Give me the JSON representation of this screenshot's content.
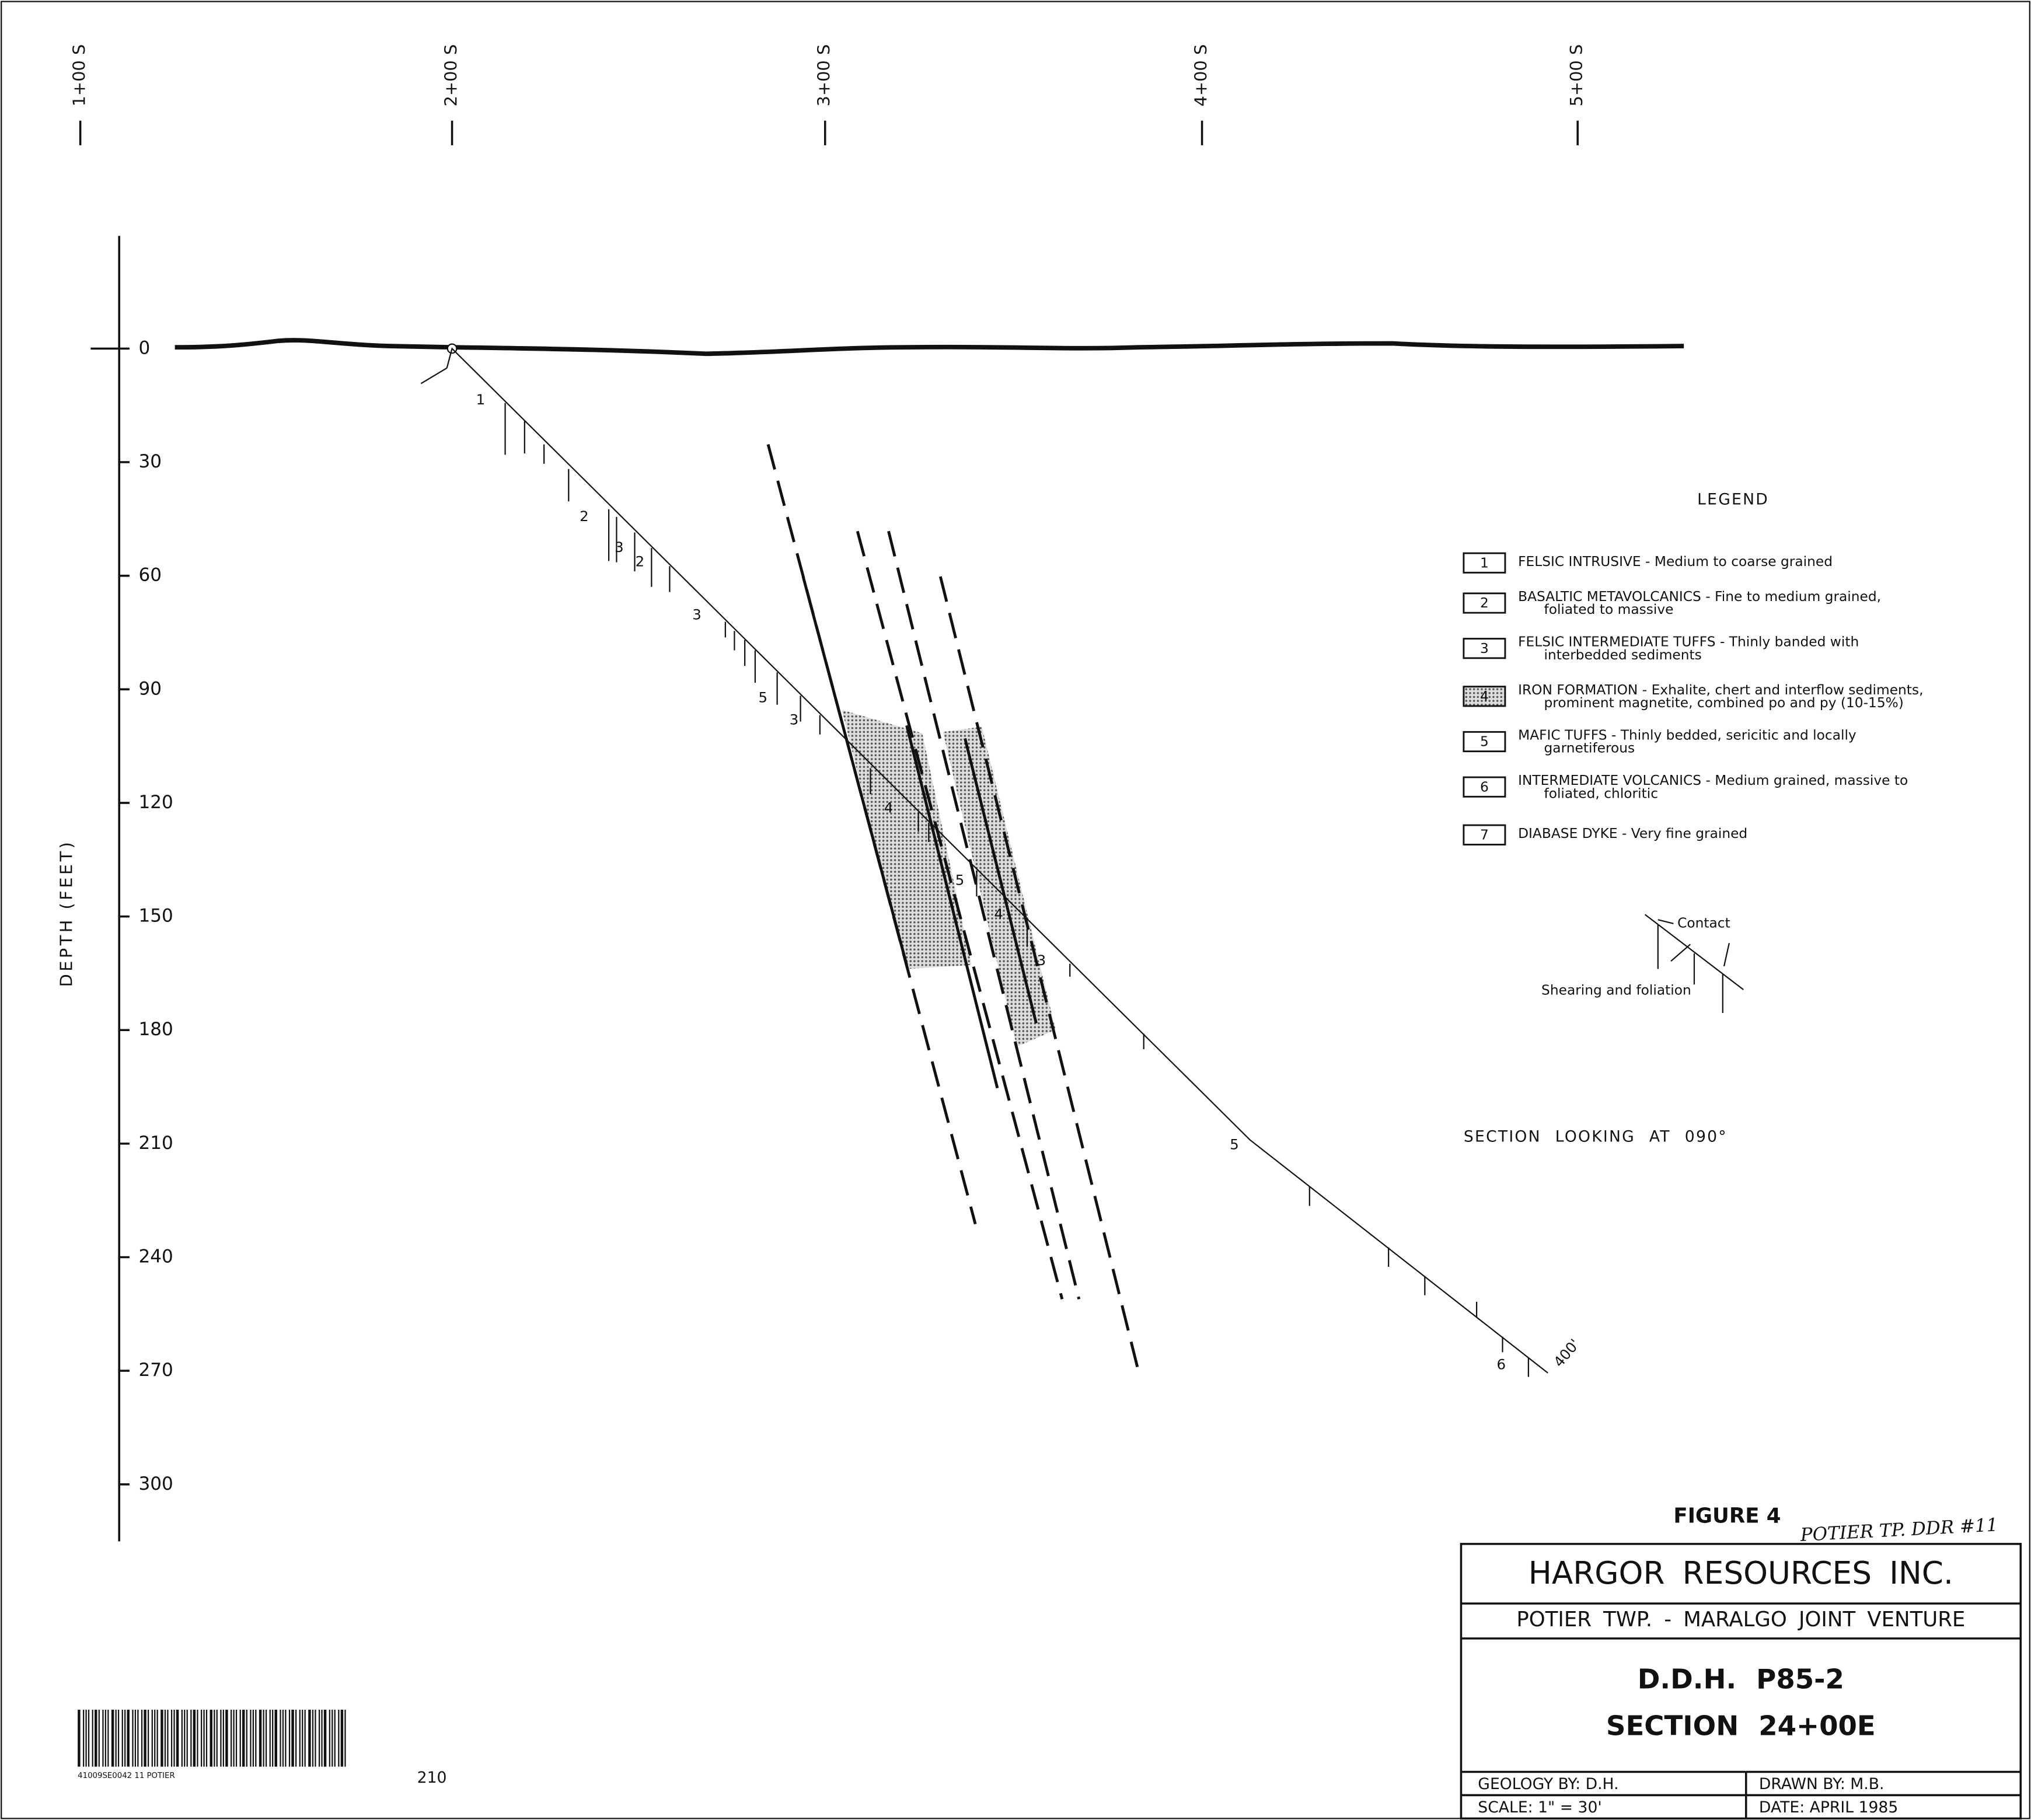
{
  "stations": [
    "1+00 S",
    "2+00 S",
    "3+00 S",
    "4+00 S",
    "5+00 S"
  ],
  "depth_axis": {
    "title": "DEPTH (FEET)",
    "ticks": [
      0,
      30,
      60,
      90,
      120,
      150,
      180,
      210,
      240,
      270,
      300
    ]
  },
  "hole_labels": [
    "1",
    "2",
    "3",
    "2",
    "3",
    "5",
    "3",
    "4",
    "5",
    "4",
    "3",
    "5",
    "6",
    "400'"
  ],
  "legend": {
    "title": "LEGEND",
    "items": [
      {
        "code": "1",
        "lines": [
          "FELSIC INTRUSIVE - Medium to coarse grained"
        ]
      },
      {
        "code": "2",
        "lines": [
          "BASALTIC METAVOLCANICS - Fine to medium grained,",
          "foliated to massive"
        ]
      },
      {
        "code": "3",
        "lines": [
          "FELSIC INTERMEDIATE TUFFS - Thinly banded with",
          "interbedded sediments"
        ]
      },
      {
        "code": "4",
        "lines": [
          "IRON FORMATION - Exhalite, chert and interflow sediments,",
          "prominent magnetite, combined po and py (10-15%)"
        ]
      },
      {
        "code": "5",
        "lines": [
          "MAFIC TUFFS - Thinly bedded, sericitic and locally",
          "garnetiferous"
        ]
      },
      {
        "code": "6",
        "lines": [
          "INTERMEDIATE VOLCANICS - Medium grained, massive to",
          "foliated, chloritic"
        ]
      },
      {
        "code": "7",
        "lines": [
          "DIABASE DYKE - Very fine grained"
        ]
      }
    ]
  },
  "key": {
    "contact": "Contact",
    "shearing": "Shearing and foliation"
  },
  "section_note": "SECTION LOOKING AT 090°",
  "title_block": {
    "figure": "FIGURE 4",
    "handwritten": "POTIER TP. DDR #11",
    "company": "HARGOR RESOURCES INC.",
    "project": "POTIER TWP. - MARALGO JOINT VENTURE",
    "hole": "D.D.H. P85-2",
    "section": "SECTION 24+00E",
    "geology": "GEOLOGY BY: D.H.",
    "drawn": "DRAWN BY: M.B.",
    "scale": "SCALE: 1\" = 30'",
    "date": "DATE: APRIL 1985"
  },
  "barcode_text": "41009SE0042 11 POTIER",
  "page_number": "210"
}
